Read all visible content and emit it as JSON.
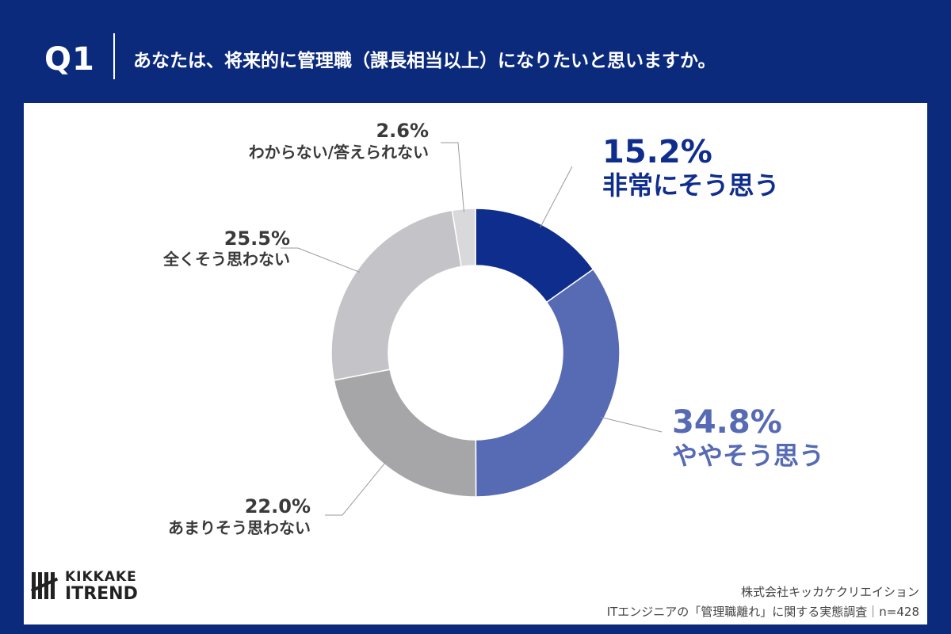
{
  "header": {
    "question_label": "Q1",
    "question_text": "あなたは、将来的に管理職（課長相当以上）になりたいと思いますか。"
  },
  "colors": {
    "header_bg": "#0b2a7c",
    "very_much": "#0f2d8c",
    "somewhat": "#566bb3",
    "not_much": "#a6a6a8",
    "not_at_all": "#c4c4c8",
    "unknown": "#d9d9dc"
  },
  "chart_data": {
    "type": "donut",
    "unit": "%",
    "slices": [
      {
        "label": "非常にそう思う",
        "value": 15.2,
        "display": "15.2%"
      },
      {
        "label": "ややそう思う",
        "value": 34.8,
        "display": "34.8%"
      },
      {
        "label": "あまりそう思わない",
        "value": 22.0,
        "display": "22.0%"
      },
      {
        "label": "全くそう思わない",
        "value": 25.5,
        "display": "25.5%"
      },
      {
        "label": "わからない/答えられない",
        "value": 2.6,
        "display": "2.6%"
      }
    ]
  },
  "footer": {
    "logo_line1": "KIKKAKE",
    "logo_line2": "ITREND",
    "source_company": "株式会社キッカケクリエイション",
    "source_survey": "ITエンジニアの「管理職離れ」に関する実態調査｜n=428"
  }
}
